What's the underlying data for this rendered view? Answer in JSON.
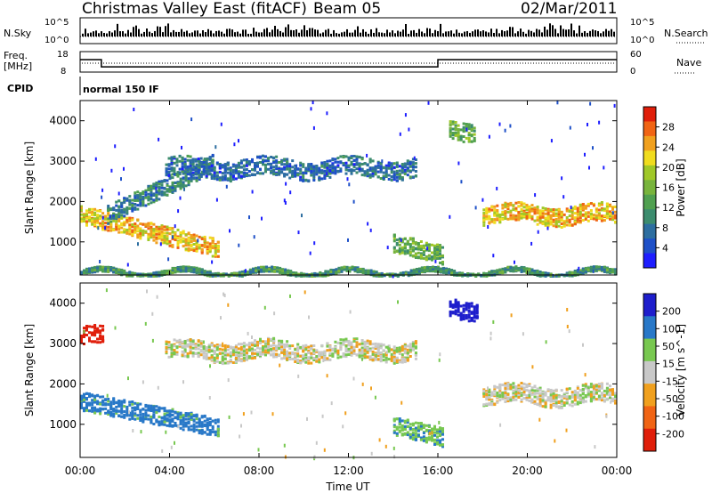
{
  "header": {
    "radar": "Christmas Valley East (fitACF)",
    "beam": "Beam 05",
    "date": "02/Mar/2011"
  },
  "noise_panel": {
    "left_label": "N.Sky",
    "right_label": "N.Search",
    "left_ticks": [
      "10^5",
      "10^0"
    ],
    "right_ticks": [
      "10^5",
      "10^0"
    ]
  },
  "freq_panel": {
    "left_label_line1": "Freq.",
    "left_label_line2": "[MHz]",
    "right_label": "Nave",
    "left_ticks": [
      "18",
      "8"
    ],
    "right_ticks": [
      "60",
      "0"
    ]
  },
  "cpid": {
    "label": "CPID",
    "value": "normal 150 IF"
  },
  "xaxis": {
    "label": "Time UT",
    "ticks": [
      "00:00",
      "04:00",
      "08:00",
      "12:00",
      "16:00",
      "20:00",
      "00:00"
    ]
  },
  "colors": {
    "power_scale": [
      "#1e1eff",
      "#1e50c8",
      "#2d6ea0",
      "#3c8c6e",
      "#50a050",
      "#78b43c",
      "#a0c828",
      "#f0dc1e",
      "#f0a01e",
      "#f06414",
      "#e01e0a"
    ],
    "velocity_scale": [
      "#e01e0a",
      "#f06414",
      "#f0a01e",
      "#c8c8c8",
      "#78c850",
      "#2878c8",
      "#1e1ecc"
    ]
  },
  "chart_data": [
    {
      "type": "heatmap",
      "title": "Power",
      "ylabel": "Slant Range [km]",
      "yticks": [
        "1000",
        "2000",
        "3000",
        "4000"
      ],
      "ylim": [
        180,
        4500
      ],
      "xlim_hours": [
        0,
        24
      ],
      "colorbar": {
        "label": "Power [dB]",
        "ticks": [
          "4",
          "8",
          "12",
          "16",
          "20",
          "24",
          "28"
        ],
        "range": [
          0,
          30
        ]
      },
      "features": [
        {
          "t": [
            0.0,
            6.2
          ],
          "r0": 1700,
          "r1": 850,
          "value": 22,
          "note": "descending band"
        },
        {
          "t": [
            1.2,
            6.0
          ],
          "r0": 1700,
          "r1": 3000,
          "value": 8
        },
        {
          "t": [
            3.8,
            15.0
          ],
          "r": 2850,
          "value": 6
        },
        {
          "t": [
            14.0,
            16.2
          ],
          "r0": 1000,
          "r1": 700,
          "value": 14
        },
        {
          "t": [
            18.0,
            24.0
          ],
          "r": 1700,
          "value": 22
        },
        {
          "t": [
            16.5,
            17.6
          ],
          "r": 3800,
          "value": 13
        },
        {
          "t": [
            0.0,
            24.0
          ],
          "r": 270,
          "value": 10,
          "note": "near-range ground scatter"
        }
      ]
    },
    {
      "type": "heatmap",
      "title": "Velocity",
      "ylabel": "Slant Range [km]",
      "yticks": [
        "1000",
        "2000",
        "3000",
        "4000"
      ],
      "ylim": [
        180,
        4500
      ],
      "xlim_hours": [
        0,
        24
      ],
      "colorbar": {
        "label": "Velocity [m s^-1]",
        "ticks": [
          "200",
          "100",
          "50",
          "15",
          "-15",
          "-50",
          "-100",
          "-200"
        ],
        "range": [
          -250,
          250
        ]
      },
      "features": [
        {
          "t": [
            0.0,
            6.2
          ],
          "r0": 1600,
          "r1": 950,
          "value": 100
        },
        {
          "t": [
            3.8,
            15.0
          ],
          "r": 2850,
          "value": 0
        },
        {
          "t": [
            14.0,
            16.2
          ],
          "r0": 1000,
          "r1": 700,
          "value": 60
        },
        {
          "t": [
            16.5,
            17.8
          ],
          "r": 3900,
          "value": 180
        },
        {
          "t": [
            18.0,
            24.0
          ],
          "r": 1750,
          "value": 0
        },
        {
          "t": [
            0.0,
            1.0
          ],
          "r": 3200,
          "value": -180
        }
      ]
    }
  ],
  "frequency_series": {
    "x_hours": [
      0.0,
      0.95,
      0.95,
      16.0,
      16.0,
      24.0
    ],
    "mhz": [
      14.5,
      14.5,
      11.0,
      11.0,
      14.5,
      14.5
    ]
  }
}
